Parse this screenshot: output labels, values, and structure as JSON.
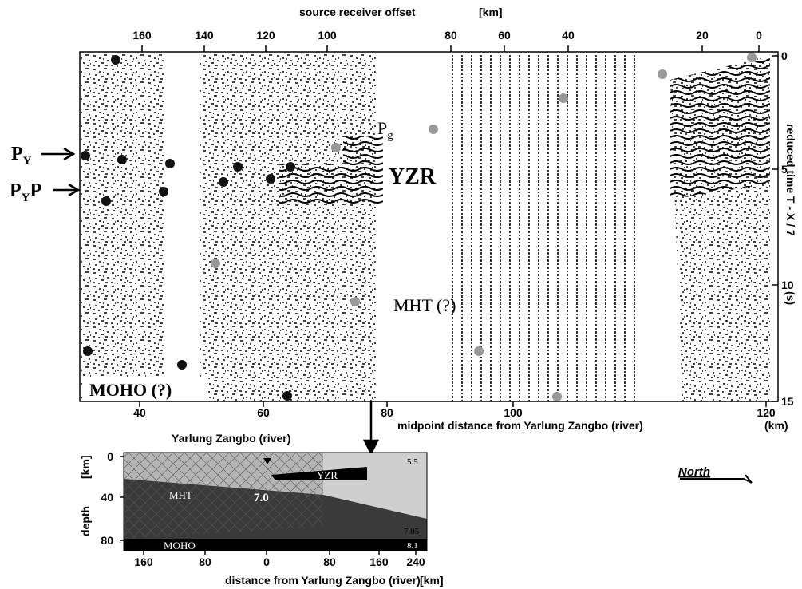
{
  "record_section": {
    "offset_title": "source receiver offset",
    "offset_unit": "[km]",
    "offset_ticks": [
      "160",
      "140",
      "120",
      "100",
      "80",
      "60",
      "40",
      "20",
      "0"
    ],
    "time_ticks": [
      "0",
      "5",
      "10",
      "15"
    ],
    "time_label": "reduced time   T - X / 7",
    "time_unit": "(s)",
    "midpoint_ticks": [
      "40",
      "60",
      "80",
      "100",
      "120"
    ],
    "midpoint_label": "midpoint distance from Yarlung Zangbo (river)",
    "midpoint_unit": "(km)",
    "phase_py": {
      "main": "P",
      "sub": "Y"
    },
    "phase_pyp": {
      "main": "P",
      "sub": "Y",
      "tail": "P"
    },
    "phase_pg": {
      "main": "P",
      "sub": "g"
    },
    "annotations": [
      "YZR",
      "MHT (?)",
      "MOHO (?)"
    ],
    "river_label": "Yarlung Zangbo (river)"
  },
  "model": {
    "depth_ticks": [
      "0",
      "40",
      "80"
    ],
    "depth_unit": "[km]",
    "depth_label": "depth",
    "distance_ticks": [
      "160",
      "80",
      "0",
      "80",
      "160",
      "240"
    ],
    "distance_label": "distance from Yarlung Zangbo (river)",
    "distance_unit": "[km]",
    "labels": [
      "YZR",
      "MHT",
      "7.0",
      "MOHO",
      "5.5",
      "7.05",
      "8.1"
    ],
    "north": "North"
  }
}
